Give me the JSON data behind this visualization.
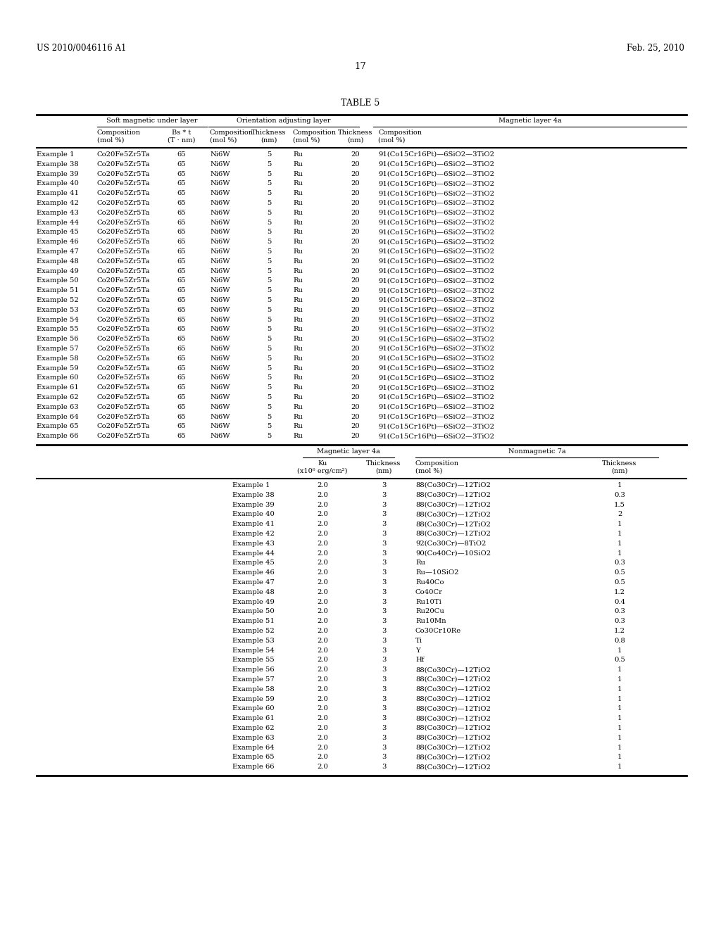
{
  "header_left": "US 2010/0046116 A1",
  "header_right": "Feb. 25, 2010",
  "page_number": "17",
  "table_title": "TABLE 5",
  "top_section_headers": [
    "Soft magnetic under layer",
    "Orientation adjusting layer",
    "Magnetic layer 4a"
  ],
  "top_rows": [
    [
      "Example 1",
      "Co20Fe5Zr5Ta",
      "65",
      "Ni6W",
      "5",
      "Ru",
      "20",
      "91(Co15Cr16Pt)—6SiO2—3TiO2"
    ],
    [
      "Example 38",
      "Co20Fe5Zr5Ta",
      "65",
      "Ni6W",
      "5",
      "Ru",
      "20",
      "91(Co15Cr16Pt)—6SiO2—3TiO2"
    ],
    [
      "Example 39",
      "Co20Fe5Zr5Ta",
      "65",
      "Ni6W",
      "5",
      "Ru",
      "20",
      "91(Co15Cr16Pt)—6SiO2—3TiO2"
    ],
    [
      "Example 40",
      "Co20Fe5Zr5Ta",
      "65",
      "Ni6W",
      "5",
      "Ru",
      "20",
      "91(Co15Cr16Pt)—6SiO2—3TiO2"
    ],
    [
      "Example 41",
      "Co20Fe5Zr5Ta",
      "65",
      "Ni6W",
      "5",
      "Ru",
      "20",
      "91(Co15Cr16Pt)—6SiO2—3TiO2"
    ],
    [
      "Example 42",
      "Co20Fe5Zr5Ta",
      "65",
      "Ni6W",
      "5",
      "Ru",
      "20",
      "91(Co15Cr16Pt)—6SiO2—3TiO2"
    ],
    [
      "Example 43",
      "Co20Fe5Zr5Ta",
      "65",
      "Ni6W",
      "5",
      "Ru",
      "20",
      "91(Co15Cr16Pt)—6SiO2—3TiO2"
    ],
    [
      "Example 44",
      "Co20Fe5Zr5Ta",
      "65",
      "Ni6W",
      "5",
      "Ru",
      "20",
      "91(Co15Cr16Pt)—6SiO2—3TiO2"
    ],
    [
      "Example 45",
      "Co20Fe5Zr5Ta",
      "65",
      "Ni6W",
      "5",
      "Ru",
      "20",
      "91(Co15Cr16Pt)—6SiO2—3TiO2"
    ],
    [
      "Example 46",
      "Co20Fe5Zr5Ta",
      "65",
      "Ni6W",
      "5",
      "Ru",
      "20",
      "91(Co15Cr16Pt)—6SiO2—3TiO2"
    ],
    [
      "Example 47",
      "Co20Fe5Zr5Ta",
      "65",
      "Ni6W",
      "5",
      "Ru",
      "20",
      "91(Co15Cr16Pt)—6SiO2—3TiO2"
    ],
    [
      "Example 48",
      "Co20Fe5Zr5Ta",
      "65",
      "Ni6W",
      "5",
      "Ru",
      "20",
      "91(Co15Cr16Pt)—6SiO2—3TiO2"
    ],
    [
      "Example 49",
      "Co20Fe5Zr5Ta",
      "65",
      "Ni6W",
      "5",
      "Ru",
      "20",
      "91(Co15Cr16Pt)—6SiO2—3TiO2"
    ],
    [
      "Example 50",
      "Co20Fe5Zr5Ta",
      "65",
      "Ni6W",
      "5",
      "Ru",
      "20",
      "91(Co15Cr16Pt)—6SiO2—3TiO2"
    ],
    [
      "Example 51",
      "Co20Fe5Zr5Ta",
      "65",
      "Ni6W",
      "5",
      "Ru",
      "20",
      "91(Co15Cr16Pt)—6SiO2—3TiO2"
    ],
    [
      "Example 52",
      "Co20Fe5Zr5Ta",
      "65",
      "Ni6W",
      "5",
      "Ru",
      "20",
      "91(Co15Cr16Pt)—6SiO2—3TiO2"
    ],
    [
      "Example 53",
      "Co20Fe5Zr5Ta",
      "65",
      "Ni6W",
      "5",
      "Ru",
      "20",
      "91(Co15Cr16Pt)—6SiO2—3TiO2"
    ],
    [
      "Example 54",
      "Co20Fe5Zr5Ta",
      "65",
      "Ni6W",
      "5",
      "Ru",
      "20",
      "91(Co15Cr16Pt)—6SiO2—3TiO2"
    ],
    [
      "Example 55",
      "Co20Fe5Zr5Ta",
      "65",
      "Ni6W",
      "5",
      "Ru",
      "20",
      "91(Co15Cr16Pt)—6SiO2—3TiO2"
    ],
    [
      "Example 56",
      "Co20Fe5Zr5Ta",
      "65",
      "Ni6W",
      "5",
      "Ru",
      "20",
      "91(Co15Cr16Pt)—6SiO2—3TiO2"
    ],
    [
      "Example 57",
      "Co20Fe5Zr5Ta",
      "65",
      "Ni6W",
      "5",
      "Ru",
      "20",
      "91(Co15Cr16Pt)—6SiO2—3TiO2"
    ],
    [
      "Example 58",
      "Co20Fe5Zr5Ta",
      "65",
      "Ni6W",
      "5",
      "Ru",
      "20",
      "91(Co15Cr16Pt)—6SiO2—3TiO2"
    ],
    [
      "Example 59",
      "Co20Fe5Zr5Ta",
      "65",
      "Ni6W",
      "5",
      "Ru",
      "20",
      "91(Co15Cr16Pt)—6SiO2—3TiO2"
    ],
    [
      "Example 60",
      "Co20Fe5Zr5Ta",
      "65",
      "Ni6W",
      "5",
      "Ru",
      "20",
      "91(Co15Cr16Pt)—6SiO2—3TiO2"
    ],
    [
      "Example 61",
      "Co20Fe5Zr5Ta",
      "65",
      "Ni6W",
      "5",
      "Ru",
      "20",
      "91(Co15Cr16Pt)—6SiO2—3TiO2"
    ],
    [
      "Example 62",
      "Co20Fe5Zr5Ta",
      "65",
      "Ni6W",
      "5",
      "Ru",
      "20",
      "91(Co15Cr16Pt)—6SiO2—3TiO2"
    ],
    [
      "Example 63",
      "Co20Fe5Zr5Ta",
      "65",
      "Ni6W",
      "5",
      "Ru",
      "20",
      "91(Co15Cr16Pt)—6SiO2—3TiO2"
    ],
    [
      "Example 64",
      "Co20Fe5Zr5Ta",
      "65",
      "Ni6W",
      "5",
      "Ru",
      "20",
      "91(Co15Cr16Pt)—6SiO2—3TiO2"
    ],
    [
      "Example 65",
      "Co20Fe5Zr5Ta",
      "65",
      "Ni6W",
      "5",
      "Ru",
      "20",
      "91(Co15Cr16Pt)—6SiO2—3TiO2"
    ],
    [
      "Example 66",
      "Co20Fe5Zr5Ta",
      "65",
      "Ni6W",
      "5",
      "Ru",
      "20",
      "91(Co15Cr16Pt)—6SiO2—3TiO2"
    ]
  ],
  "bottom_section_headers": [
    "Magnetic layer 4a",
    "Nonmagnetic 7a"
  ],
  "bottom_rows": [
    [
      "Example 1",
      "2.0",
      "3",
      "88(Co30Cr)—12TiO2",
      "1"
    ],
    [
      "Example 38",
      "2.0",
      "3",
      "88(Co30Cr)—12TiO2",
      "0.3"
    ],
    [
      "Example 39",
      "2.0",
      "3",
      "88(Co30Cr)—12TiO2",
      "1.5"
    ],
    [
      "Example 40",
      "2.0",
      "3",
      "88(Co30Cr)—12TiO2",
      "2"
    ],
    [
      "Example 41",
      "2.0",
      "3",
      "88(Co30Cr)—12TiO2",
      "1"
    ],
    [
      "Example 42",
      "2.0",
      "3",
      "88(Co30Cr)—12TiO2",
      "1"
    ],
    [
      "Example 43",
      "2.0",
      "3",
      "92(Co30Cr)—8TiO2",
      "1"
    ],
    [
      "Example 44",
      "2.0",
      "3",
      "90(Co40Cr)—10SiO2",
      "1"
    ],
    [
      "Example 45",
      "2.0",
      "3",
      "Ru",
      "0.3"
    ],
    [
      "Example 46",
      "2.0",
      "3",
      "Ru—10SiO2",
      "0.5"
    ],
    [
      "Example 47",
      "2.0",
      "3",
      "Ru40Co",
      "0.5"
    ],
    [
      "Example 48",
      "2.0",
      "3",
      "Co40Cr",
      "1.2"
    ],
    [
      "Example 49",
      "2.0",
      "3",
      "Ru10Ti",
      "0.4"
    ],
    [
      "Example 50",
      "2.0",
      "3",
      "Ru20Cu",
      "0.3"
    ],
    [
      "Example 51",
      "2.0",
      "3",
      "Ru10Mn",
      "0.3"
    ],
    [
      "Example 52",
      "2.0",
      "3",
      "Co30Cr10Re",
      "1.2"
    ],
    [
      "Example 53",
      "2.0",
      "3",
      "Ti",
      "0.8"
    ],
    [
      "Example 54",
      "2.0",
      "3",
      "Y",
      "1"
    ],
    [
      "Example 55",
      "2.0",
      "3",
      "Hf",
      "0.5"
    ],
    [
      "Example 56",
      "2.0",
      "3",
      "88(Co30Cr)—12TiO2",
      "1"
    ],
    [
      "Example 57",
      "2.0",
      "3",
      "88(Co30Cr)—12TiO2",
      "1"
    ],
    [
      "Example 58",
      "2.0",
      "3",
      "88(Co30Cr)—12TiO2",
      "1"
    ],
    [
      "Example 59",
      "2.0",
      "3",
      "88(Co30Cr)—12TiO2",
      "1"
    ],
    [
      "Example 60",
      "2.0",
      "3",
      "88(Co30Cr)—12TiO2",
      "1"
    ],
    [
      "Example 61",
      "2.0",
      "3",
      "88(Co30Cr)—12TiO2",
      "1"
    ],
    [
      "Example 62",
      "2.0",
      "3",
      "88(Co30Cr)—12TiO2",
      "1"
    ],
    [
      "Example 63",
      "2.0",
      "3",
      "88(Co30Cr)—12TiO2",
      "1"
    ],
    [
      "Example 64",
      "2.0",
      "3",
      "88(Co30Cr)—12TiO2",
      "1"
    ],
    [
      "Example 65",
      "2.0",
      "3",
      "88(Co30Cr)—12TiO2",
      "1"
    ],
    [
      "Example 66",
      "2.0",
      "3",
      "88(Co30Cr)—12TiO2",
      "1"
    ]
  ]
}
